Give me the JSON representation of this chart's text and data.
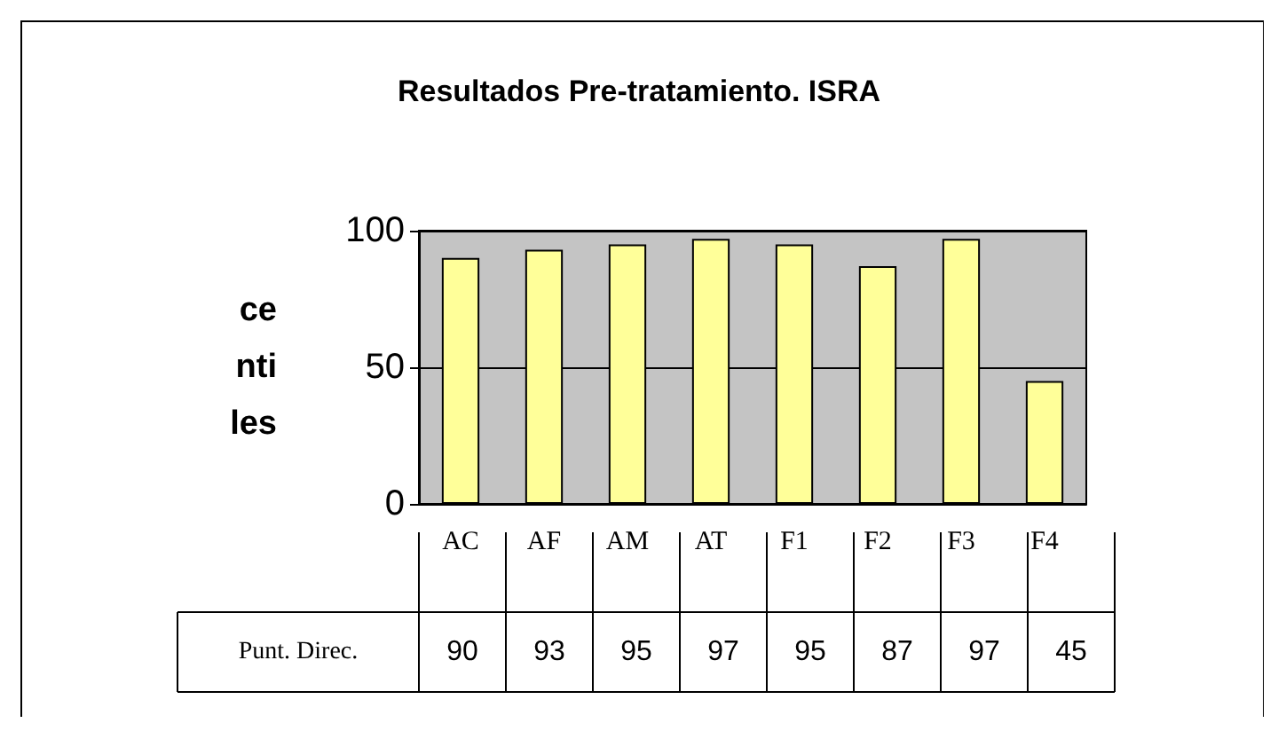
{
  "chart_data": {
    "type": "bar",
    "title": "Resultados Pre-tratamiento. ISRA",
    "ylabel": "ce\nnti\nles",
    "categories": [
      "AC",
      "AF",
      "AM",
      "AT",
      "F1",
      "F2",
      "F3",
      "F4"
    ],
    "series": [
      {
        "name": "Punt. Direc.",
        "color": "#ffff99",
        "values": [
          90,
          93,
          95,
          97,
          95,
          87,
          97,
          45
        ]
      }
    ],
    "ylim": [
      0,
      100
    ],
    "yticks": [
      0,
      50,
      100
    ],
    "grid": "y",
    "legend": false,
    "data_labels": true
  }
}
